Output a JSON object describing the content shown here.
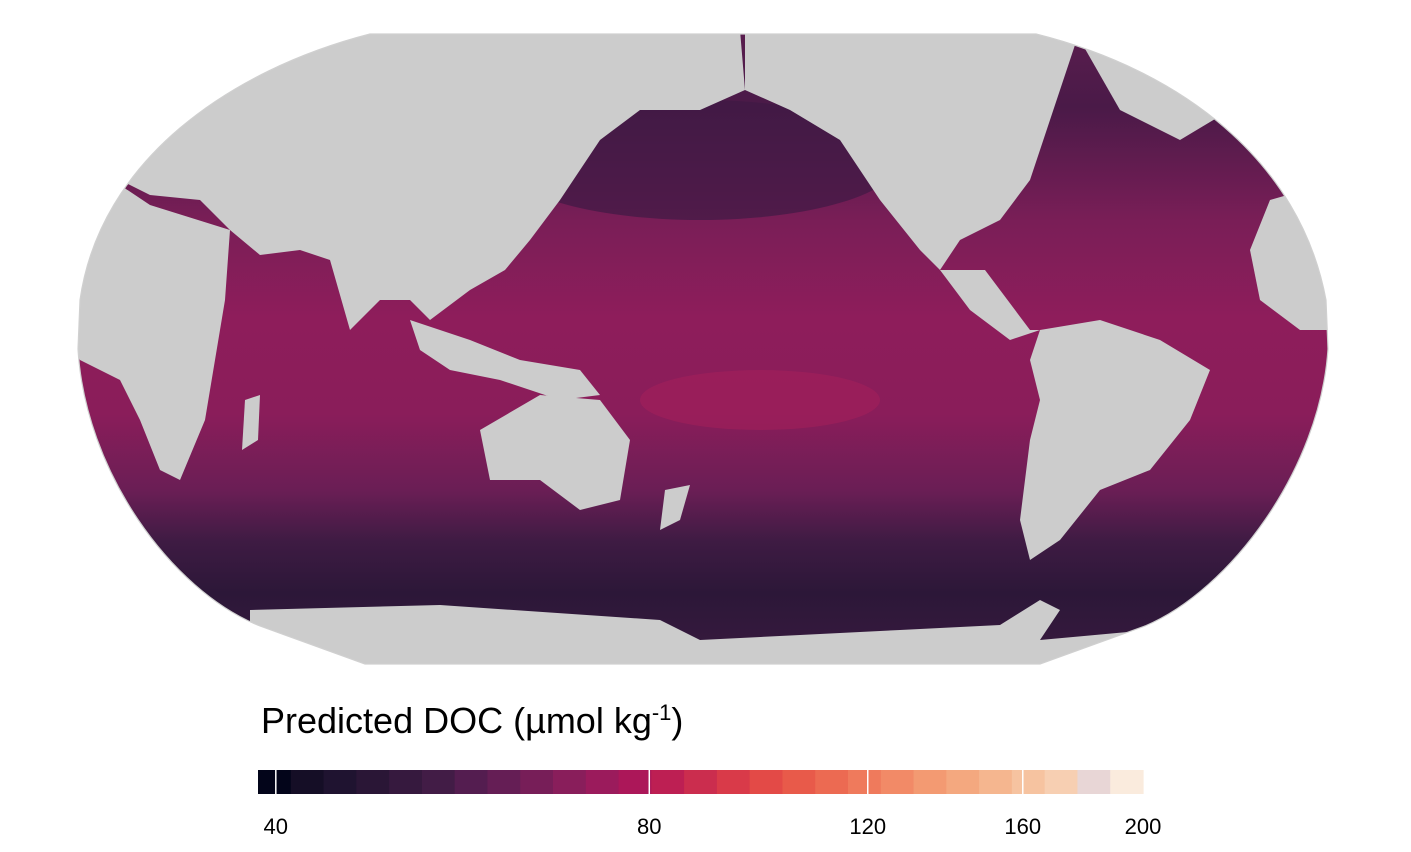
{
  "map": {
    "projection": "Robinson (Pacific-centred)",
    "land_color": "#cccccc",
    "graticule_color": "#d0d0d0",
    "ocean_palette": "rocket"
  },
  "legend": {
    "title_main": "Predicted DOC (µmol kg",
    "title_sup": "-1",
    "title_close": ")",
    "scale": "log",
    "range": [
      38.7,
      200
    ],
    "ticks": [
      {
        "value": 40,
        "label": "40"
      },
      {
        "value": 80,
        "label": "80"
      },
      {
        "value": 120,
        "label": "120"
      },
      {
        "value": 160,
        "label": "160"
      },
      {
        "value": 200,
        "label": "200"
      }
    ],
    "colors": [
      "#03051a",
      "#150e26",
      "#1f1330",
      "#2a1636",
      "#36193e",
      "#421c46",
      "#541d50",
      "#651e55",
      "#771e58",
      "#891e5b",
      "#9b1b5c",
      "#ac1759",
      "#bd1f53",
      "#cb2d4e",
      "#d93a49",
      "#e34a47",
      "#e85a4a",
      "#ec6a52",
      "#ef7a5c",
      "#f28a67",
      "#f39a72",
      "#f4a87f",
      "#f5b68f",
      "#f6c3a0",
      "#f7cfb2",
      "#e8d6d6",
      "#faebdd"
    ]
  }
}
